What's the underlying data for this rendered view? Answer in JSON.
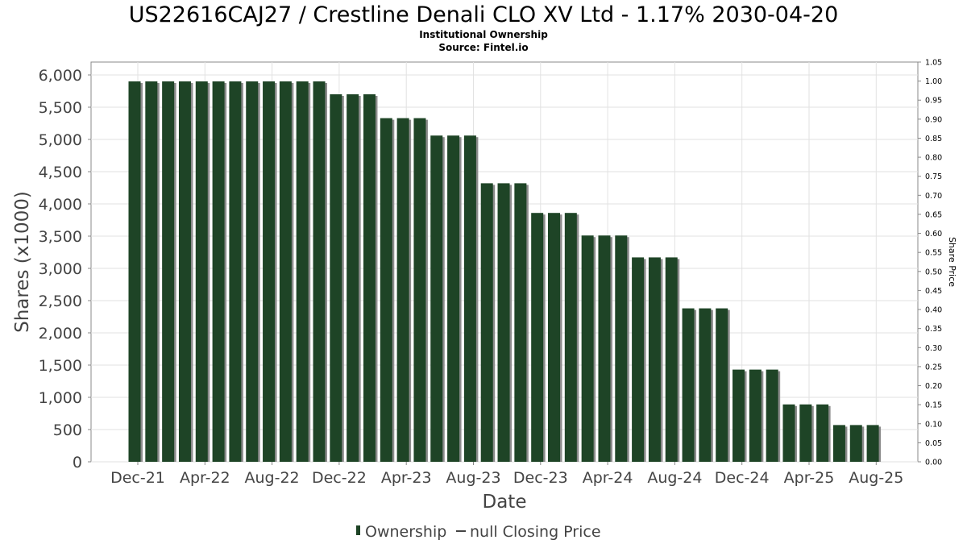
{
  "chart_data": {
    "type": "bar",
    "title": "US22616CAJ27 / Crestline Denali CLO XV Ltd - 1.17% 2030-04-20",
    "subtitle_lines": [
      "Institutional Ownership",
      "Source: Fintel.io"
    ],
    "xlabel": "Date",
    "ylabel": "Shares (x1000)",
    "y2label": "Share Price",
    "ylim": [
      0,
      6200
    ],
    "yticks": [
      0,
      500,
      1000,
      1500,
      2000,
      2500,
      3000,
      3500,
      4000,
      4500,
      5000,
      5500,
      6000
    ],
    "ytick_labels": [
      "0",
      "500",
      "1,000",
      "1,500",
      "2,000",
      "2,500",
      "3,000",
      "3,500",
      "4,000",
      "4,500",
      "5,000",
      "5,500",
      "6,000"
    ],
    "y2lim": [
      0,
      1.05
    ],
    "y2ticks": [
      "0.00",
      "0.05",
      "0.10",
      "0.15",
      "0.20",
      "0.25",
      "0.30",
      "0.35",
      "0.40",
      "0.45",
      "0.50",
      "0.55",
      "0.60",
      "0.65",
      "0.70",
      "0.75",
      "0.80",
      "0.85",
      "0.90",
      "0.95",
      "1.00",
      "1.05"
    ],
    "xtick_labels": [
      "Dec-21",
      "Apr-22",
      "Aug-22",
      "Dec-22",
      "Apr-23",
      "Aug-23",
      "Dec-23",
      "Apr-24",
      "Aug-24",
      "Dec-24",
      "Apr-25",
      "Aug-25"
    ],
    "grid": true,
    "legend_position": "bottom",
    "series": [
      {
        "name": "Ownership",
        "color": "#1e4426",
        "values": [
          5900,
          5900,
          5900,
          5900,
          5900,
          5900,
          5900,
          5900,
          5900,
          5900,
          5900,
          5900,
          5700,
          5700,
          5700,
          5330,
          5330,
          5330,
          5060,
          5060,
          5060,
          4320,
          4320,
          4320,
          3860,
          3860,
          3860,
          3510,
          3510,
          3510,
          3170,
          3170,
          3170,
          2380,
          2380,
          2380,
          1430,
          1430,
          1430,
          890,
          890,
          890,
          570,
          570,
          570
        ]
      }
    ],
    "legend": [
      "Ownership",
      "null Closing Price"
    ]
  }
}
